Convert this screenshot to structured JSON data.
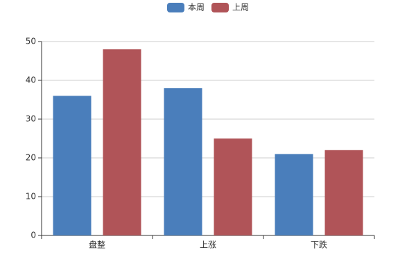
{
  "chart_data": {
    "type": "bar",
    "categories": [
      "盘整",
      "上涨",
      "下跌"
    ],
    "series": [
      {
        "name": "本周",
        "color": "#4a7ebb",
        "values": [
          36,
          38,
          21
        ]
      },
      {
        "name": "上周",
        "color": "#b05458",
        "values": [
          48,
          25,
          22
        ]
      }
    ],
    "ylim": [
      0,
      50
    ],
    "yticks": [
      0,
      10,
      20,
      30,
      40,
      50
    ],
    "grid": true,
    "legend": "top"
  }
}
